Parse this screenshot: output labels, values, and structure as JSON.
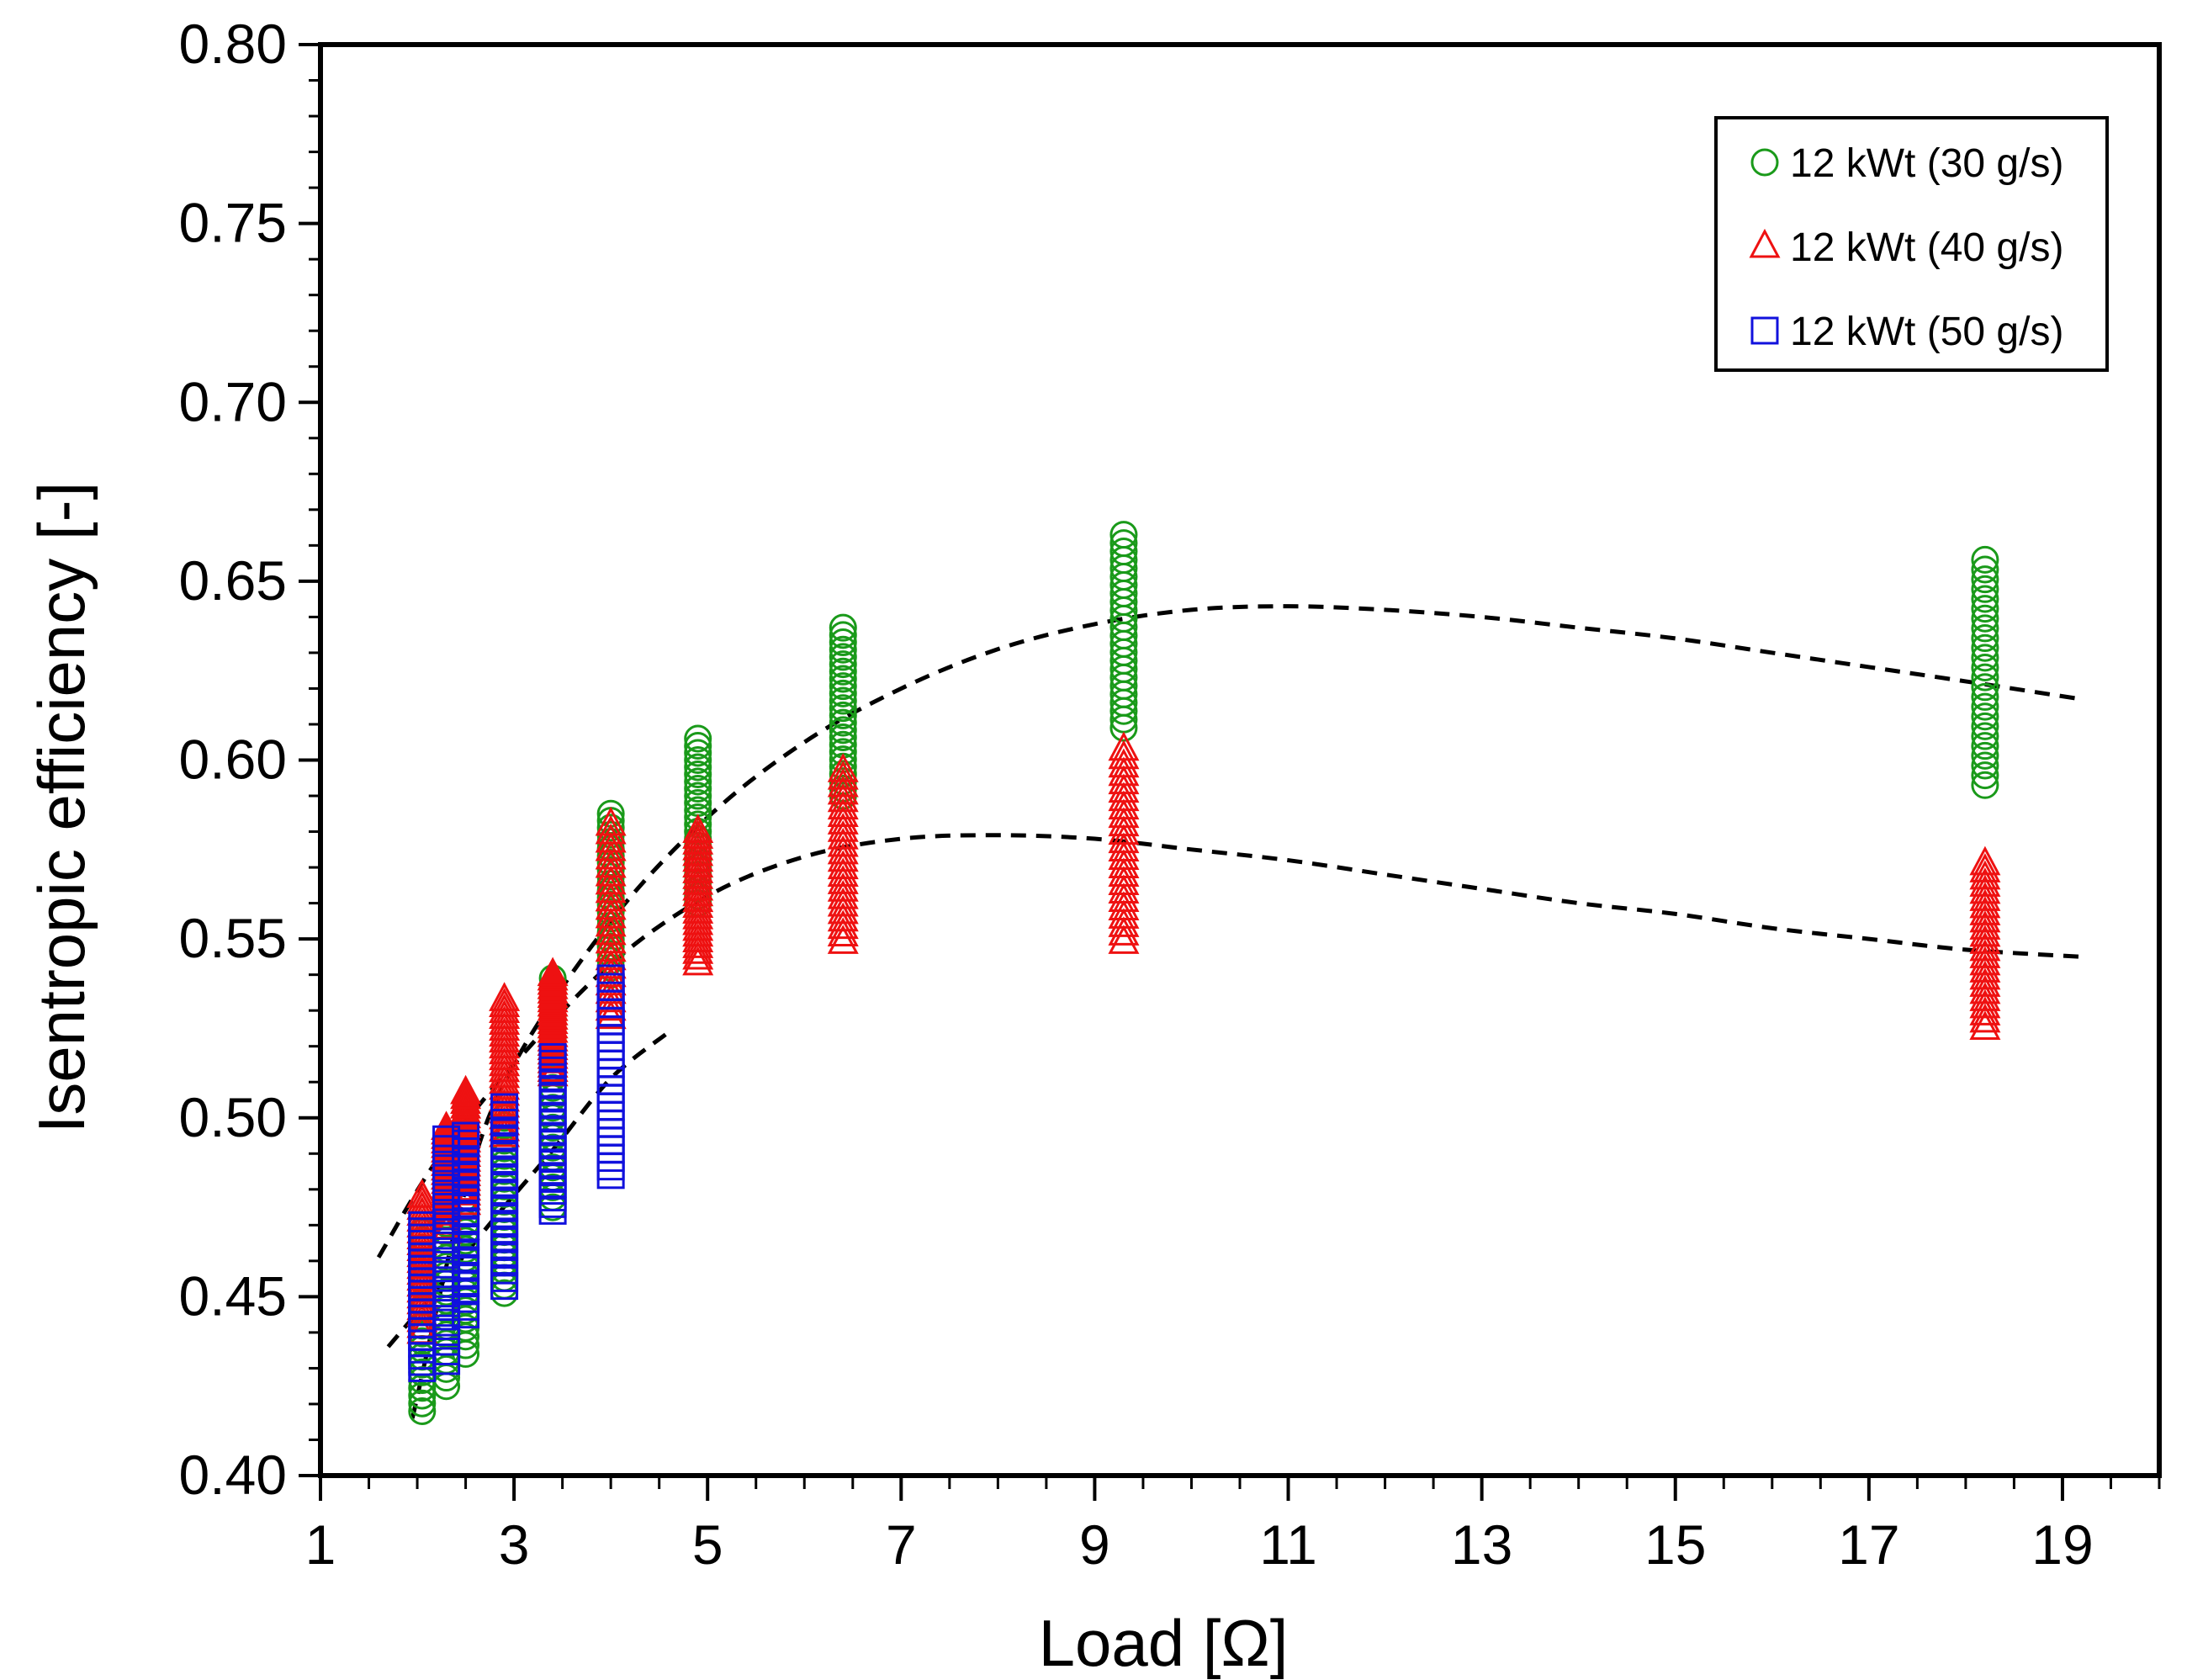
{
  "chart_data": {
    "type": "scatter",
    "title": "",
    "xlabel": "Load [Ω]",
    "ylabel": "Isentropic efficiency [-]",
    "xlim": [
      1,
      20
    ],
    "ylim": [
      0.4,
      0.8
    ],
    "x_ticks": [
      1,
      3,
      5,
      7,
      9,
      11,
      13,
      15,
      17,
      19
    ],
    "x_tick_labels": [
      "1",
      "3",
      "5",
      "7",
      "9",
      "11",
      "13",
      "15",
      "17",
      "19"
    ],
    "y_ticks": [
      0.4,
      0.45,
      0.5,
      0.55,
      0.6,
      0.65,
      0.7,
      0.75,
      0.8
    ],
    "y_tick_labels": [
      "0.40",
      "0.45",
      "0.50",
      "0.55",
      "0.60",
      "0.65",
      "0.70",
      "0.75",
      "0.80"
    ],
    "grid": false,
    "legend_position": "top-right",
    "series": [
      {
        "name": "12 kWt (30 g/s)",
        "marker": "circle",
        "color": "#1a9a1a",
        "groups": [
          {
            "x": 2.05,
            "y_min": 0.418,
            "y_max": 0.468
          },
          {
            "x": 2.3,
            "y_min": 0.425,
            "y_max": 0.48
          },
          {
            "x": 2.5,
            "y_min": 0.434,
            "y_max": 0.49
          },
          {
            "x": 2.9,
            "y_min": 0.451,
            "y_max": 0.5
          },
          {
            "x": 3.4,
            "y_min": 0.475,
            "y_max": 0.539
          },
          {
            "x": 4.0,
            "y_min": 0.54,
            "y_max": 0.585
          },
          {
            "x": 4.9,
            "y_min": 0.56,
            "y_max": 0.606
          },
          {
            "x": 6.4,
            "y_min": 0.59,
            "y_max": 0.637
          },
          {
            "x": 9.3,
            "y_min": 0.609,
            "y_max": 0.663
          },
          {
            "x": 18.2,
            "y_min": 0.593,
            "y_max": 0.656
          }
        ]
      },
      {
        "name": "12 kWt (40 g/s)",
        "marker": "triangle",
        "color": "#ee1111",
        "groups": [
          {
            "x": 2.05,
            "y_min": 0.44,
            "y_max": 0.478
          },
          {
            "x": 2.3,
            "y_min": 0.468,
            "y_max": 0.497
          },
          {
            "x": 2.5,
            "y_min": 0.476,
            "y_max": 0.507
          },
          {
            "x": 2.9,
            "y_min": 0.495,
            "y_max": 0.533
          },
          {
            "x": 3.4,
            "y_min": 0.512,
            "y_max": 0.54
          },
          {
            "x": 4.0,
            "y_min": 0.528,
            "y_max": 0.582
          },
          {
            "x": 4.9,
            "y_min": 0.543,
            "y_max": 0.58
          },
          {
            "x": 6.4,
            "y_min": 0.549,
            "y_max": 0.597
          },
          {
            "x": 9.3,
            "y_min": 0.549,
            "y_max": 0.603
          },
          {
            "x": 18.2,
            "y_min": 0.525,
            "y_max": 0.571
          }
        ]
      },
      {
        "name": "12 kWt (50 g/s)",
        "marker": "square",
        "color": "#1111dd",
        "groups": [
          {
            "x": 2.05,
            "y_min": 0.43,
            "y_max": 0.47
          },
          {
            "x": 2.3,
            "y_min": 0.432,
            "y_max": 0.494
          },
          {
            "x": 2.5,
            "y_min": 0.445,
            "y_max": 0.495
          },
          {
            "x": 2.9,
            "y_min": 0.453,
            "y_max": 0.503
          },
          {
            "x": 3.4,
            "y_min": 0.474,
            "y_max": 0.517
          },
          {
            "x": 4.0,
            "y_min": 0.484,
            "y_max": 0.539
          }
        ]
      }
    ],
    "fit_curves": [
      {
        "style": "dashed",
        "color": "#000000",
        "x": [
          1.95,
          2.5,
          3,
          4,
          5,
          6,
          7,
          8,
          9,
          10,
          11,
          12,
          13,
          14,
          15,
          16,
          17,
          18,
          19.2
        ],
        "y": [
          0.416,
          0.48,
          0.515,
          0.555,
          0.584,
          0.605,
          0.62,
          0.631,
          0.638,
          0.642,
          0.643,
          0.642,
          0.64,
          0.637,
          0.634,
          0.63,
          0.626,
          0.622,
          0.617
        ]
      },
      {
        "style": "dashed",
        "color": "#000000",
        "x": [
          1.6,
          2.2,
          3,
          4,
          5,
          6,
          7,
          8,
          9,
          10,
          11,
          12,
          13,
          14,
          15,
          16,
          17,
          18,
          19.2
        ],
        "y": [
          0.461,
          0.488,
          0.515,
          0.543,
          0.562,
          0.573,
          0.578,
          0.579,
          0.578,
          0.575,
          0.572,
          0.568,
          0.564,
          0.56,
          0.557,
          0.553,
          0.55,
          0.547,
          0.545
        ]
      },
      {
        "style": "dashed",
        "color": "#000000",
        "x": [
          1.7,
          2.2,
          2.8,
          3.4,
          4.0,
          4.6
        ],
        "y": [
          0.436,
          0.452,
          0.472,
          0.491,
          0.511,
          0.524
        ]
      }
    ]
  }
}
